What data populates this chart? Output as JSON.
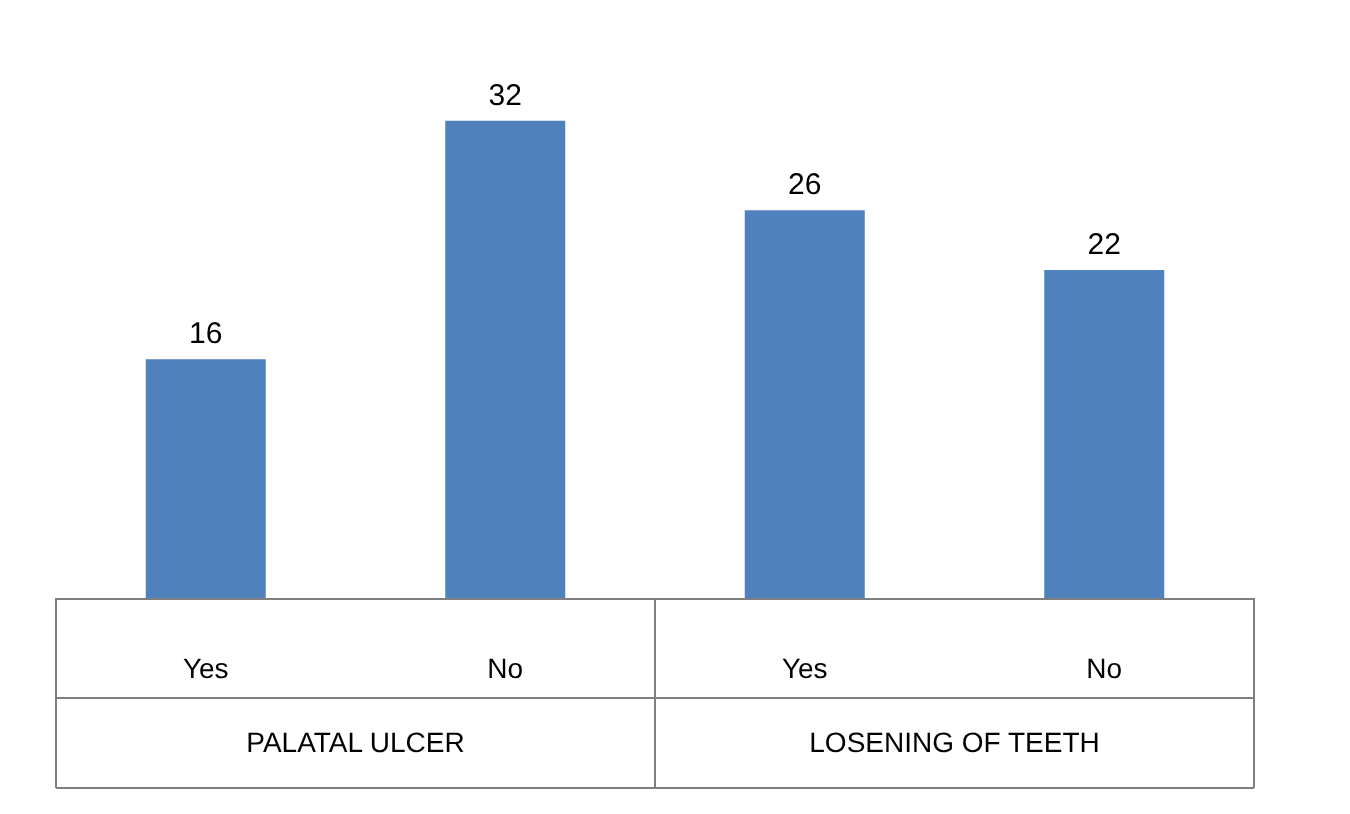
{
  "chart_data": {
    "type": "bar",
    "categories": [
      "Yes",
      "No",
      "Yes",
      "No"
    ],
    "values": [
      16,
      32,
      26,
      22
    ],
    "color": "#4f81bd",
    "data_labels": true,
    "annotations": [
      "PALATAL ULCER",
      "LOSENING OF TEETH"
    ]
  }
}
